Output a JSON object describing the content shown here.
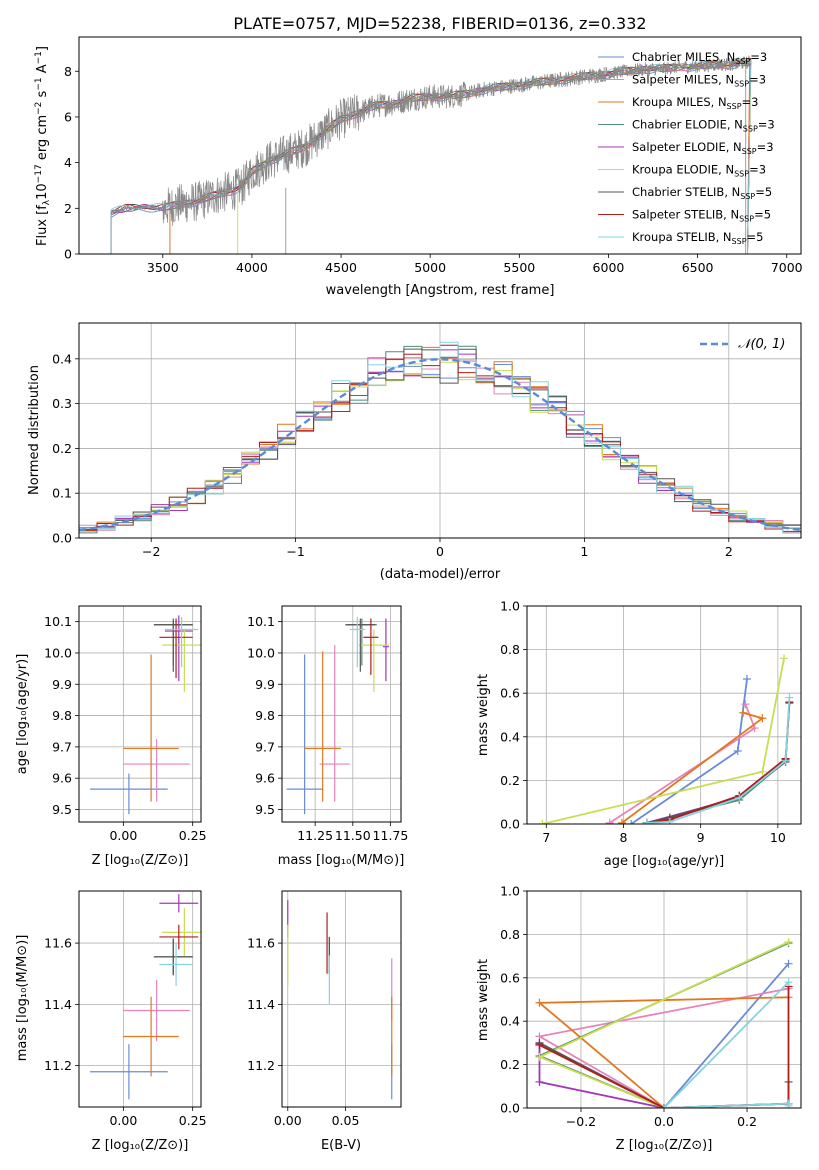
{
  "title": "PLATE=0757, MJD=52238, FIBERID=0136, z=0.332",
  "models": [
    {
      "key": "chab_miles",
      "color": "#6a8bd9"
    },
    {
      "key": "salp_miles",
      "color": "#e882bd"
    },
    {
      "key": "krou_miles",
      "color": "#e2771e"
    },
    {
      "key": "chab_elodie",
      "color": "#4f8c75"
    },
    {
      "key": "salp_elodie",
      "color": "#a436b8"
    },
    {
      "key": "krou_elodie",
      "color": "#c8de50"
    },
    {
      "key": "chab_stelib",
      "color": "#555555"
    },
    {
      "key": "salp_stelib",
      "color": "#b01d1d"
    },
    {
      "key": "krou_stelib",
      "color": "#86d3e0"
    }
  ],
  "spectrum_legend": [
    "Chabrier MILES, N_SSP=3",
    "Salpeter MILES, N_SSP=3",
    "Kroupa MILES, N_SSP=3",
    "Chabrier ELODIE, N_SSP=3",
    "Salpeter ELODIE, N_SSP=3",
    "Kroupa ELODIE, N_SSP=3",
    "Chabrier STELIB, N_SSP=5",
    "Salpeter STELIB, N_SSP=5",
    "Kroupa STELIB, N_SSP=5"
  ],
  "panels": {
    "spectrum": {
      "xlabel": "wavelength [Angstrom, rest frame]",
      "ylabel": "Flux [f_λ 10^-17 erg cm^-2 s^-1 A^-1]"
    },
    "residuals": {
      "xlabel": "(data-model)/error",
      "ylabel": "Normed distribution",
      "legend": "N(0,1)"
    },
    "age_Z": {
      "xlabel": "Z [log10(Z/Z⊙)]",
      "ylabel": "age [log10(age/yr)]"
    },
    "age_mass": {
      "xlabel": "mass [log10(M/M⊙)]"
    },
    "weight_age": {
      "xlabel": "age [log10(age/yr)]",
      "ylabel": "mass weight"
    },
    "mass_Z": {
      "xlabel": "Z [log10(Z/Z⊙)]",
      "ylabel": "mass [log10(M/M⊙)]"
    },
    "mass_ebv": {
      "xlabel": "E(B-V)"
    },
    "weight_Z": {
      "xlabel": "Z [log10(Z/Z⊙)]",
      "ylabel": "mass weight"
    }
  },
  "chart_data": [
    {
      "type": "line",
      "title": "PLATE=0757, MJD=52238, FIBERID=0136, z=0.332",
      "xlabel": "wavelength [Angstrom, rest frame]",
      "ylabel": "Flux [f_λ 10^-17 erg cm^-2 s^-1 A^-1]",
      "xlim": [
        3030,
        7080
      ],
      "ylim": [
        0,
        9.5
      ],
      "xticks": [
        3500,
        4000,
        4500,
        5000,
        5500,
        6000,
        6500,
        7000
      ],
      "yticks": [
        0,
        2,
        4,
        6,
        8
      ],
      "data_start_x": 3210,
      "data_end_x": 6800,
      "continuum": {
        "x": [
          3210,
          3300,
          3400,
          3500,
          3600,
          3700,
          3800,
          3900,
          3950,
          4000,
          4100,
          4200,
          4300,
          4400,
          4500,
          4600,
          4700,
          4800,
          4900,
          5000,
          5100,
          5200,
          5300,
          5400,
          5500,
          5600,
          5700,
          5800,
          5900,
          6000,
          6100,
          6200,
          6300,
          6400,
          6500,
          6600,
          6700,
          6800
        ],
        "y": [
          1.8,
          2.0,
          2.05,
          2.0,
          2.2,
          2.3,
          2.6,
          2.8,
          3.0,
          3.6,
          4.1,
          4.4,
          4.7,
          5.3,
          5.9,
          6.2,
          6.5,
          6.6,
          6.8,
          6.9,
          6.9,
          7.0,
          7.2,
          7.3,
          7.4,
          7.5,
          7.6,
          7.7,
          7.8,
          7.9,
          8.0,
          8.1,
          8.1,
          8.2,
          8.2,
          8.3,
          8.3,
          8.4
        ]
      },
      "series": [
        {
          "name": "Chabrier MILES, N_SSP=3"
        },
        {
          "name": "Salpeter MILES, N_SSP=3"
        },
        {
          "name": "Kroupa MILES, N_SSP=3"
        },
        {
          "name": "Chabrier ELODIE, N_SSP=3"
        },
        {
          "name": "Salpeter ELODIE, N_SSP=3"
        },
        {
          "name": "Kroupa ELODIE, N_SSP=3"
        },
        {
          "name": "Chabrier STELIB, N_SSP=5"
        },
        {
          "name": "Salpeter STELIB, N_SSP=5"
        },
        {
          "name": "Kroupa STELIB, N_SSP=5"
        }
      ]
    },
    {
      "type": "line",
      "xlabel": "(data-model)/error",
      "ylabel": "Normed distribution",
      "xlim": [
        -2.5,
        2.5
      ],
      "ylim": [
        0,
        0.48
      ],
      "xticks": [
        -2,
        -1,
        0,
        1,
        2
      ],
      "yticks": [
        0.0,
        0.1,
        0.2,
        0.3,
        0.4
      ],
      "bins": 40,
      "reference_curve": "N(0,1)",
      "grid": true,
      "legend_position": "top-right"
    },
    {
      "type": "scatter",
      "xlabel": "Z [log10(Z/Z⊙)]",
      "ylabel": "age [log10(age/yr)]",
      "xlim": [
        -0.16,
        0.28
      ],
      "ylim": [
        9.46,
        10.15
      ],
      "xticks": [
        0.0,
        0.25
      ],
      "yticks": [
        9.5,
        9.6,
        9.7,
        9.8,
        9.9,
        10.0,
        10.1
      ],
      "points": [
        {
          "x": 0.02,
          "xerr": 0.14,
          "y": 9.565,
          "yerr_lo": 0.08,
          "yerr_hi": 0.05
        },
        {
          "x": 0.12,
          "xerr": 0.12,
          "y": 9.645,
          "yerr_lo": 0.12,
          "yerr_hi": 0.08
        },
        {
          "x": 0.1,
          "xerr": 0.1,
          "y": 9.695,
          "yerr_lo": 0.17,
          "yerr_hi": 0.3
        },
        {
          "x": 0.18,
          "xerr": 0.07,
          "y": 10.09,
          "yerr_lo": 0.13,
          "yerr_hi": 0.01
        },
        {
          "x": 0.2,
          "xerr": 0.05,
          "y": 10.07,
          "yerr_lo": 0.16,
          "yerr_hi": 0.05
        },
        {
          "x": 0.22,
          "xerr": 0.08,
          "y": 10.025,
          "yerr_lo": 0.15,
          "yerr_hi": 0.05
        },
        {
          "x": 0.18,
          "xerr": 0.07,
          "y": 10.09,
          "yerr_lo": 0.15,
          "yerr_hi": 0.02
        },
        {
          "x": 0.19,
          "xerr": 0.06,
          "y": 10.05,
          "yerr_lo": 0.13,
          "yerr_hi": 0.06
        },
        {
          "x": 0.21,
          "xerr": 0.06,
          "y": 10.075,
          "yerr_lo": 0.12,
          "yerr_hi": 0.04
        }
      ]
    },
    {
      "type": "scatter",
      "xlabel": "mass [log10(M/M⊙)]",
      "xlim": [
        11.03,
        11.82
      ],
      "ylim": [
        9.46,
        10.15
      ],
      "xticks": [
        11.25,
        11.5,
        11.75
      ],
      "yticks": [
        9.5,
        9.6,
        9.7,
        9.8,
        9.9,
        10.0,
        10.1
      ],
      "points": [
        {
          "x": 11.18,
          "xerr": 0.12,
          "y": 9.565,
          "yerr_lo": 0.08,
          "yerr_hi": 0.43
        },
        {
          "x": 11.38,
          "xerr": 0.1,
          "y": 9.645,
          "yerr_lo": 0.12,
          "yerr_hi": 0.38
        },
        {
          "x": 11.3,
          "xerr": 0.12,
          "y": 9.695,
          "yerr_lo": 0.17,
          "yerr_hi": 0.31
        },
        {
          "x": 11.56,
          "xerr": 0.1,
          "y": 10.09,
          "yerr_lo": 0.13,
          "yerr_hi": 0.02
        },
        {
          "x": 11.72,
          "xerr": 0.02,
          "y": 10.02,
          "yerr_lo": 0.11,
          "yerr_hi": 0.09
        },
        {
          "x": 11.64,
          "xerr": 0.1,
          "y": 10.025,
          "yerr_lo": 0.15,
          "yerr_hi": 0.05
        },
        {
          "x": 11.55,
          "xerr": 0.1,
          "y": 10.09,
          "yerr_lo": 0.15,
          "yerr_hi": 0.02
        },
        {
          "x": 11.62,
          "xerr": 0.05,
          "y": 10.05,
          "yerr_lo": 0.12,
          "yerr_hi": 0.06
        },
        {
          "x": 11.53,
          "xerr": 0.05,
          "y": 10.075,
          "yerr_lo": 0.12,
          "yerr_hi": 0.04
        }
      ]
    },
    {
      "type": "line",
      "xlabel": "age [log10(age/yr)]",
      "ylabel": "mass weight",
      "xlim": [
        6.75,
        10.3
      ],
      "ylim": [
        0,
        1
      ],
      "xticks": [
        7,
        8,
        9,
        10
      ],
      "yticks": [
        0.0,
        0.2,
        0.4,
        0.6,
        0.8,
        1.0
      ],
      "grid": true,
      "series": [
        {
          "model": "chab_miles",
          "x": [
            9.6,
            9.48,
            8.1
          ],
          "y": [
            0.665,
            0.335,
            0.0
          ]
        },
        {
          "model": "salp_miles",
          "x": [
            9.58,
            9.7,
            7.82
          ],
          "y": [
            0.55,
            0.44,
            0.005
          ]
        },
        {
          "model": "krou_miles",
          "x": [
            9.55,
            9.8,
            7.98
          ],
          "y": [
            0.51,
            0.485,
            0.005
          ]
        },
        {
          "model": "chab_elodie",
          "x": [
            10.1,
            9.5,
            8.3
          ],
          "y": [
            0.29,
            0.11,
            0.005
          ]
        },
        {
          "model": "salp_elodie",
          "x": [
            10.1,
            9.5,
            8.3
          ],
          "y": [
            0.295,
            0.12,
            0.005
          ]
        },
        {
          "model": "krou_elodie",
          "x": [
            10.08,
            9.8,
            6.95
          ],
          "y": [
            0.76,
            0.24,
            0.0
          ]
        },
        {
          "model": "chab_stelib",
          "x": [
            10.15,
            10.1,
            9.5,
            8.6,
            8.3
          ],
          "y": [
            0.56,
            0.285,
            0.125,
            0.03,
            0.005
          ]
        },
        {
          "model": "salp_stelib",
          "x": [
            10.15,
            10.1,
            9.5,
            8.6,
            8.3
          ],
          "y": [
            0.555,
            0.3,
            0.13,
            0.02,
            0.005
          ]
        },
        {
          "model": "krou_stelib",
          "x": [
            10.15,
            10.1,
            9.5,
            8.6,
            8.3
          ],
          "y": [
            0.58,
            0.29,
            0.12,
            0.01,
            0.005
          ]
        }
      ]
    },
    {
      "type": "scatter",
      "xlabel": "Z [log10(Z/Z⊙)]",
      "ylabel": "mass [log10(M/M⊙)]",
      "xlim": [
        -0.16,
        0.28
      ],
      "ylim": [
        11.065,
        11.77
      ],
      "xticks": [
        0.0,
        0.25
      ],
      "yticks": [
        11.2,
        11.4,
        11.6
      ],
      "points": [
        {
          "x": 0.02,
          "xerr": 0.14,
          "y": 11.18,
          "yerr": 0.09
        },
        {
          "x": 0.12,
          "xerr": 0.12,
          "y": 11.38,
          "yerr": 0.1
        },
        {
          "x": 0.1,
          "xerr": 0.1,
          "y": 11.295,
          "yerr": 0.13
        },
        {
          "x": 0.18,
          "xerr": 0.07,
          "y": 11.555,
          "yerr": 0.06
        },
        {
          "x": 0.2,
          "xerr": 0.07,
          "y": 11.73,
          "yerr": 0.03
        },
        {
          "x": 0.22,
          "xerr": 0.08,
          "y": 11.635,
          "yerr": 0.08
        },
        {
          "x": 0.18,
          "xerr": 0.07,
          "y": 11.555,
          "yerr": 0.06
        },
        {
          "x": 0.2,
          "xerr": 0.07,
          "y": 11.62,
          "yerr": 0.04
        },
        {
          "x": 0.19,
          "xerr": 0.06,
          "y": 11.53,
          "yerr": 0.07
        }
      ]
    },
    {
      "type": "scatter",
      "xlabel": "E(B-V)",
      "xlim": [
        -0.005,
        0.098
      ],
      "ylim": [
        11.065,
        11.77
      ],
      "xticks": [
        0.0,
        0.05
      ],
      "yticks": [
        11.2,
        11.4,
        11.6
      ],
      "points": [
        {
          "x": 0.09,
          "y": 11.18,
          "yerr": 0.09
        },
        {
          "x": 0.09,
          "y": 11.45,
          "yerr": 0.1
        },
        {
          "x": 0.09,
          "y": 11.295,
          "yerr": 0.13
        },
        {
          "x": 0.036,
          "y": 11.56,
          "yerr": 0.06
        },
        {
          "x": 0.0,
          "y": 11.68,
          "yerr": 0.06
        },
        {
          "x": 0.0,
          "y": 11.56,
          "yerr": 0.1
        },
        {
          "x": 0.036,
          "y": 11.56,
          "yerr": 0.06
        },
        {
          "x": 0.034,
          "y": 11.6,
          "yerr": 0.1
        },
        {
          "x": 0.036,
          "y": 11.48,
          "yerr": 0.08
        }
      ]
    },
    {
      "type": "line",
      "xlabel": "Z [log10(Z/Z⊙)]",
      "ylabel": "mass weight",
      "xlim": [
        -0.33,
        0.33
      ],
      "ylim": [
        0,
        1
      ],
      "xticks": [
        -0.2,
        0.0,
        0.2
      ],
      "yticks": [
        0.0,
        0.2,
        0.4,
        0.6,
        0.8,
        1.0
      ],
      "grid": true,
      "series": [
        {
          "model": "chab_miles",
          "x": [
            0.3,
            0.0
          ],
          "y": [
            0.665,
            0.0
          ]
        },
        {
          "model": "salp_miles",
          "x": [
            0.3,
            -0.3,
            0.0
          ],
          "y": [
            0.55,
            0.33,
            0.0
          ]
        },
        {
          "model": "krou_miles",
          "x": [
            0.3,
            -0.3,
            0.0
          ],
          "y": [
            0.51,
            0.485,
            0.0
          ]
        },
        {
          "model": "chab_elodie",
          "x": [
            0.3,
            -0.3,
            0.0
          ],
          "y": [
            0.76,
            0.24,
            0.0
          ]
        },
        {
          "model": "salp_elodie",
          "x": [
            -0.3,
            -0.3,
            0.0
          ],
          "y": [
            0.295,
            0.12,
            0.0
          ]
        },
        {
          "model": "krou_elodie",
          "x": [
            0.3,
            -0.3,
            0.0
          ],
          "y": [
            0.765,
            0.235,
            0.0
          ]
        },
        {
          "model": "chab_stelib",
          "x": [
            -0.3,
            0.0,
            0.3,
            0.3
          ],
          "y": [
            0.3,
            0.0,
            0.02,
            0.12
          ]
        },
        {
          "model": "salp_stelib",
          "x": [
            -0.3,
            0.0,
            0.3,
            0.3
          ],
          "y": [
            0.29,
            0.0,
            0.02,
            0.56
          ]
        },
        {
          "model": "krou_stelib",
          "x": [
            0.3,
            0.0,
            0.3,
            0.3
          ],
          "y": [
            0.58,
            0.0,
            0.02,
            0.01
          ]
        }
      ]
    }
  ]
}
